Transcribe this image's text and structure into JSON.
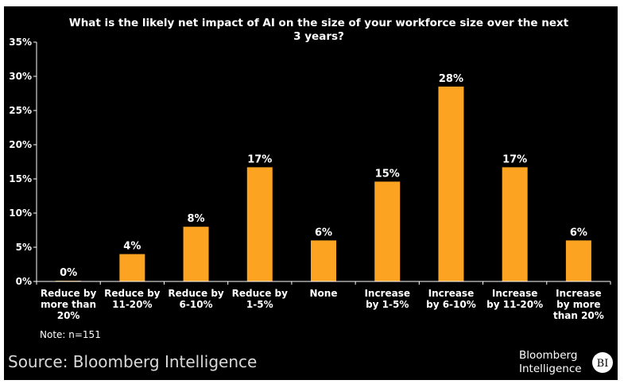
{
  "chart_data": {
    "type": "bar",
    "title": "What is the likely net impact of AI on the size of your workforce size over the next 3 years?",
    "title_lines": [
      "What is the likely net impact of AI on the size of your workforce size over the next",
      "3 years?"
    ],
    "categories": [
      "Reduce by more than 20%",
      "Reduce by 11-20%",
      "Reduce by 6-10%",
      "Reduce by 1-5%",
      "None",
      "Increase by 1-5%",
      "Increase by 6-10%",
      "Increase by 11-20%",
      "Increase by more than 20%"
    ],
    "category_lines": [
      [
        "Reduce by",
        "more than",
        "20%"
      ],
      [
        "Reduce by",
        "11-20%"
      ],
      [
        "Reduce by",
        "6-10%"
      ],
      [
        "Reduce by",
        "1-5%"
      ],
      [
        "None"
      ],
      [
        "Increase",
        "by 1-5%"
      ],
      [
        "Increase",
        "by 6-10%"
      ],
      [
        "Increase",
        "by 11-20%"
      ],
      [
        "Increase",
        "by more",
        "than 20%"
      ]
    ],
    "values": [
      0.1,
      4,
      8,
      16.7,
      6,
      14.6,
      28.5,
      16.7,
      6
    ],
    "data_labels": [
      "0%",
      "4%",
      "8%",
      "17%",
      "6%",
      "15%",
      "28%",
      "17%",
      "6%"
    ],
    "yticks": [
      0,
      5,
      10,
      15,
      20,
      25,
      30,
      35
    ],
    "ytick_labels": [
      "0%",
      "5%",
      "10%",
      "15%",
      "20%",
      "25%",
      "30%",
      "35%"
    ],
    "ylim": [
      0,
      35
    ],
    "xlabel": "",
    "ylabel": "",
    "grid": false,
    "legend": "none",
    "bar_color": "#fca321"
  },
  "note": "Note: n=151",
  "source": "Source: Bloomberg Intelligence",
  "brand": {
    "line1": "Bloomberg",
    "line2": "Intelligence",
    "mark": "BI"
  },
  "colors": {
    "background": "#000000",
    "bar": "#fca321",
    "text": "#ffffff",
    "axis": "#ffffff"
  }
}
